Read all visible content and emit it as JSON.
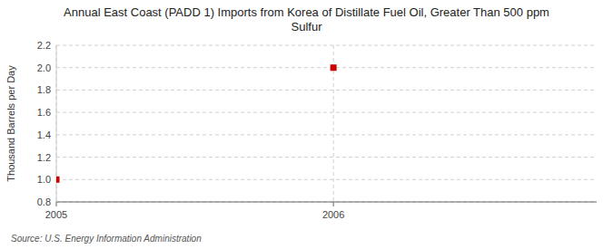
{
  "chart_data": {
    "type": "scatter",
    "title": "Annual East Coast (PADD 1) Imports from Korea of Distillate Fuel Oil, Greater Than 500 ppm\nSulfur",
    "ylabel": "Thousand Barrels per Day",
    "source": "Source: U.S. Energy Information Administration",
    "x": [
      2005,
      2006
    ],
    "values": [
      1.0,
      2.0
    ],
    "color": "#cc0000",
    "marker": "square",
    "xlim": [
      2005,
      2006.95
    ],
    "ylim": [
      0.8,
      2.2
    ],
    "xticks": [
      2005,
      2006
    ],
    "yticks": [
      0.8,
      {
        "value": 1.0,
        "label": "1.0"
      },
      1.2,
      1.4,
      1.6,
      1.8,
      {
        "value": 2.0,
        "label": "2.0"
      },
      2.2
    ],
    "grid": true
  }
}
